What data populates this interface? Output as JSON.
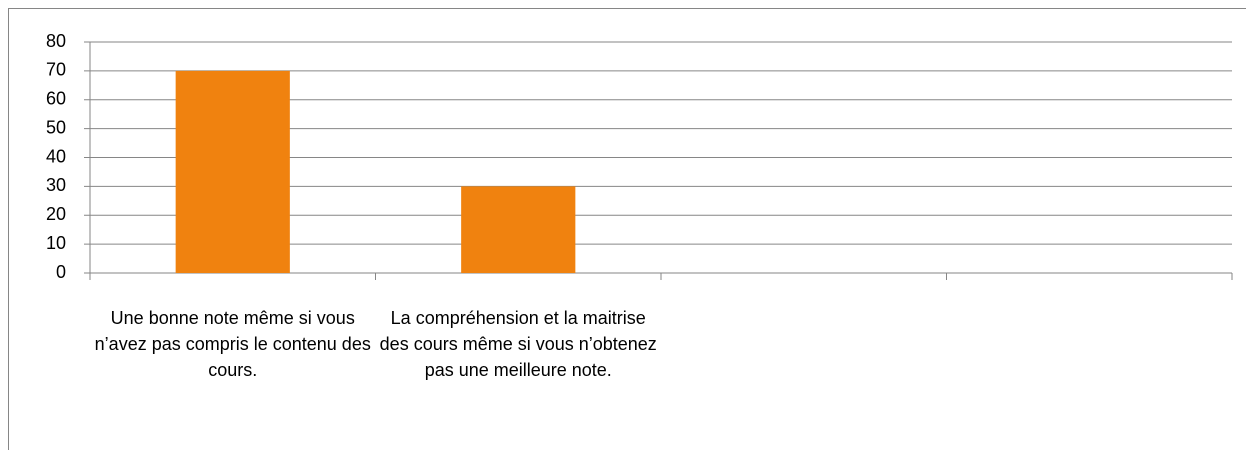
{
  "chart_data": {
    "type": "bar",
    "categories": [
      "Une bonne note même  si vous n’avez pas compris le contenu des cours.",
      "La compréhension et la maitrise des cours même si vous n’obtenez pas une meilleure note.",
      null,
      null
    ],
    "values": [
      70,
      30,
      null,
      null
    ],
    "color": "#f0820f",
    "ylim": [
      0,
      80
    ],
    "yticks": [
      0,
      10,
      20,
      30,
      40,
      50,
      60,
      70,
      80
    ],
    "grid": true
  }
}
